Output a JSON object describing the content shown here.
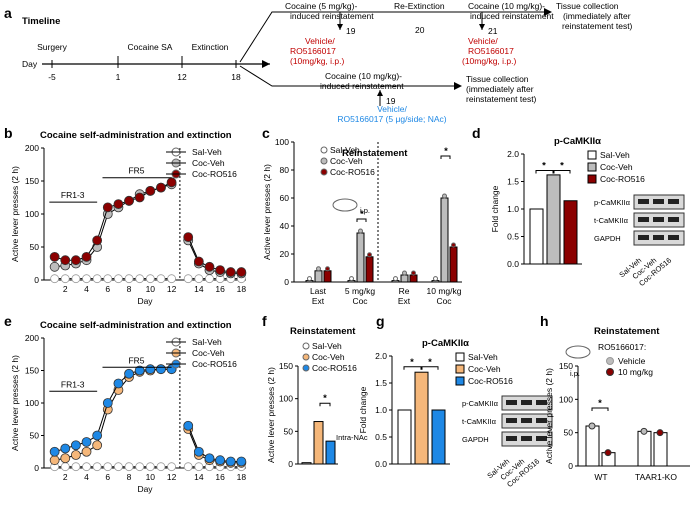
{
  "panel_labels": [
    "a",
    "b",
    "c",
    "d",
    "e",
    "f",
    "g",
    "h"
  ],
  "timeline": {
    "title": "Timeline",
    "day_label": "Day",
    "days": [
      "-5",
      "1",
      "12",
      "18",
      "19",
      "20",
      "21",
      "19"
    ],
    "phases": [
      "Surgery",
      "Cocaine SA",
      "Extinction"
    ],
    "top_branch": [
      "Cocaine (5 mg/kg)-",
      "induced reinstatement",
      "Re-Extinction",
      "Cocaine (10 mg/kg)-",
      "induced reinstatement",
      "Tissue collection",
      "(immediately after",
      "reinstatement test)"
    ],
    "top_drug": [
      "Vehicle/",
      "RO5166017",
      "(10mg/kg, i.p.)",
      "Vehicle/",
      "RO5166017",
      "(10mg/kg, i.p.)"
    ],
    "bottom_branch": [
      "Cocaine (10 mg/kg)-",
      "induced reinstatement",
      "Tissue collection",
      "(immediately after",
      "reinstatement test)"
    ],
    "bottom_drug": [
      "Vehicle/",
      "RO5166017 (5 μg/side; NAc)"
    ]
  },
  "text": {
    "b_title": "Cocaine self-administration and extinction",
    "e_title": "Cocaine self-administration and extinction",
    "c_title": "Reinstatement",
    "f_title": "Reinstatement",
    "h_title": "Reinstatement",
    "d_title": "p-CaMKIIα",
    "g_title": "p-CaMKIIα",
    "y_lever": "Active lever presses (2 h)",
    "y_fold": "Fold change",
    "day": "Day",
    "fr13": "FR1-3",
    "fr5": "FR5",
    "ip": "i.p.",
    "intra": "Intra-NAc",
    "star": "*",
    "blot1": "p-CaMKIIα",
    "blot2": "t-CaMKIIα",
    "blot3": "GAPDH",
    "lanes": [
      "Sal-Veh",
      "Coc-Veh",
      "Coc-RO516"
    ],
    "c_groups": [
      "Last",
      "Ext",
      "5 mg/kg",
      "Coc",
      "Re",
      "Ext",
      "10 mg/kg",
      "Coc"
    ],
    "h_ro": "RO5166017:",
    "h_leg": [
      "Vehicle",
      "10 mg/kg"
    ],
    "h_groups": [
      "WT",
      "TAAR1-KO"
    ]
  },
  "legend_b": [
    "Sal-Veh",
    "Coc-Veh",
    "Coc-RO516"
  ],
  "legend_e": [
    "Sal-Veh",
    "Coc-Veh",
    "Coc-RO516"
  ],
  "colors": {
    "red": "#8b0000",
    "gray": "#bdbdbd",
    "orange": "#f5b77a",
    "blue": "#1e88e5",
    "white": "#ffffff"
  },
  "chart_data": [
    {
      "panel": "b",
      "type": "line",
      "title": "Cocaine self-administration and extinction",
      "ylabel": "Active lever presses (2 h)",
      "xlabel": "Day",
      "ylim": [
        0,
        200
      ],
      "yticks": [
        "0",
        "50",
        "100",
        "150",
        "200"
      ],
      "xticks": [
        "2",
        "4",
        "6",
        "8",
        "10",
        "12",
        "14",
        "16",
        "18"
      ],
      "series": [
        {
          "name": "Sal-Veh",
          "values": [
            2,
            2,
            2,
            2,
            2,
            2,
            2,
            2,
            2,
            2,
            2,
            2,
            2,
            2,
            2,
            2,
            2,
            2
          ]
        },
        {
          "name": "Coc-Veh",
          "values": [
            20,
            22,
            25,
            30,
            50,
            100,
            110,
            120,
            130,
            135,
            140,
            145,
            60,
            25,
            15,
            12,
            10,
            10
          ]
        },
        {
          "name": "Coc-RO516",
          "values": [
            35,
            30,
            30,
            35,
            60,
            110,
            115,
            120,
            125,
            135,
            140,
            148,
            65,
            28,
            20,
            15,
            12,
            12
          ]
        }
      ]
    },
    {
      "panel": "c",
      "type": "bar",
      "title": "Reinstatement",
      "ylim": [
        0,
        100
      ],
      "yticks": [
        "0",
        "20",
        "40",
        "60",
        "80",
        "100"
      ],
      "categories": [
        "Last Ext",
        "5 mg/kg Coc",
        "Re Ext",
        "10 mg/kg Coc"
      ],
      "series": [
        {
          "name": "Sal-Veh",
          "values": [
            1,
            1,
            1,
            1
          ]
        },
        {
          "name": "Coc-Veh",
          "values": [
            8,
            35,
            5,
            60
          ]
        },
        {
          "name": "Coc-RO516",
          "values": [
            8,
            18,
            5,
            25
          ]
        }
      ]
    },
    {
      "panel": "d",
      "type": "bar",
      "ylim": [
        0,
        2.0
      ],
      "yticks": [
        "0.0",
        "0.5",
        "1.0",
        "1.5",
        "2.0"
      ],
      "categories": [
        "Sal-Veh",
        "Coc-Veh",
        "Coc-RO516"
      ],
      "values": [
        1.0,
        1.62,
        1.15
      ]
    },
    {
      "panel": "e",
      "type": "line",
      "ylim": [
        0,
        200
      ],
      "yticks": [
        "0",
        "50",
        "100",
        "150",
        "200"
      ],
      "xticks": [
        "2",
        "4",
        "6",
        "8",
        "10",
        "12",
        "14",
        "16",
        "18"
      ],
      "series": [
        {
          "name": "Sal-Veh",
          "values": [
            2,
            2,
            2,
            2,
            2,
            2,
            2,
            2,
            2,
            2,
            2,
            2,
            2,
            2,
            2,
            2,
            2,
            2
          ]
        },
        {
          "name": "Coc-Veh",
          "values": [
            12,
            15,
            20,
            25,
            35,
            90,
            120,
            140,
            148,
            150,
            152,
            152,
            60,
            20,
            12,
            10,
            8,
            8
          ]
        },
        {
          "name": "Coc-RO516",
          "values": [
            25,
            30,
            35,
            40,
            50,
            100,
            130,
            145,
            150,
            152,
            152,
            152,
            65,
            25,
            15,
            12,
            10,
            10
          ]
        }
      ]
    },
    {
      "panel": "f",
      "type": "bar",
      "ylim": [
        0,
        150
      ],
      "yticks": [
        "0",
        "50",
        "100",
        "150"
      ],
      "categories": [
        "Sal-Veh",
        "Coc-Veh",
        "Coc-RO516"
      ],
      "values": [
        2,
        65,
        35
      ]
    },
    {
      "panel": "g",
      "type": "bar",
      "ylim": [
        0,
        2.0
      ],
      "yticks": [
        "0.0",
        "0.5",
        "1.0",
        "1.5",
        "2.0"
      ],
      "categories": [
        "Sal-Veh",
        "Coc-Veh",
        "Coc-RO516"
      ],
      "values": [
        1.0,
        1.7,
        1.0
      ]
    },
    {
      "panel": "h",
      "type": "bar",
      "ylim": [
        0,
        150
      ],
      "yticks": [
        "0",
        "50",
        "100",
        "150"
      ],
      "categories": [
        "WT",
        "TAAR1-KO"
      ],
      "series": [
        {
          "name": "Vehicle",
          "values": [
            60,
            52
          ]
        },
        {
          "name": "10 mg/kg",
          "values": [
            20,
            50
          ]
        }
      ]
    }
  ]
}
